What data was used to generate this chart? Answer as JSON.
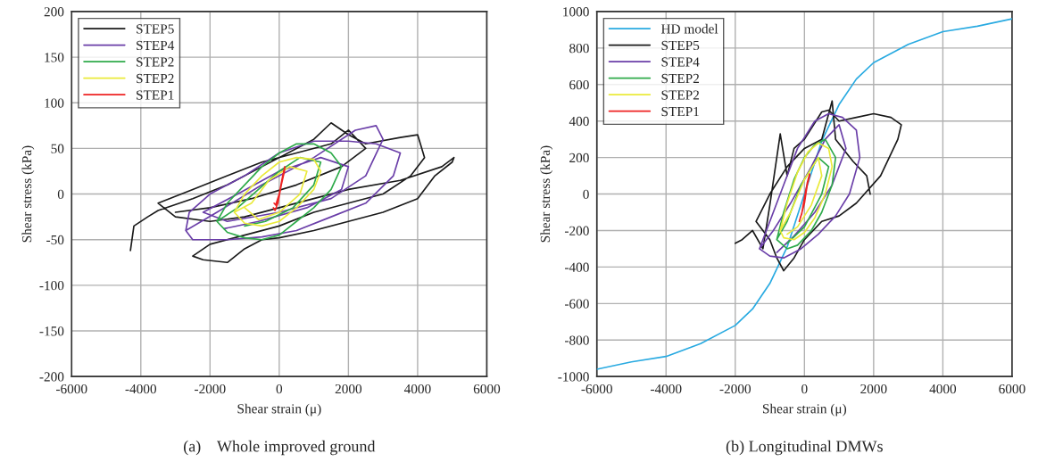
{
  "chart_data": [
    {
      "type": "line",
      "title": "(a)    Whole improved ground",
      "xlabel": "Shear strain (μ)",
      "ylabel": "Shear stress (kPa)",
      "xlim": [
        -6000,
        6000
      ],
      "ylim": [
        -200,
        200
      ],
      "xticks": [
        -6000,
        -4000,
        -2000,
        0,
        2000,
        4000,
        6000
      ],
      "yticks": [
        -200,
        -150,
        -100,
        -50,
        0,
        50,
        100,
        150,
        200
      ],
      "grid": true,
      "legend": "top left",
      "series": [
        {
          "name": "STEP5",
          "color": "#1a1a1a",
          "x": [
            -4300,
            -4200,
            -3800,
            -3500,
            -2500,
            -1500,
            -500,
            500,
            1000,
            1500,
            2000,
            2500,
            3500,
            4000,
            4200,
            3800,
            3000,
            2000,
            1000,
            0,
            -1000,
            -2000,
            -2500,
            -2200,
            -1500,
            -1000,
            -500,
            0,
            1000,
            2000,
            3000,
            4000,
            4500,
            5000,
            5050,
            4700,
            3500,
            2000,
            1000,
            0,
            -1000,
            -2000,
            -3000,
            -3500,
            -2500,
            -1500,
            -500,
            500,
            1500,
            2000,
            2500,
            1800,
            500,
            -800,
            -2000,
            -3000
          ],
          "values": [
            -62,
            -35,
            -25,
            -18,
            -5,
            10,
            30,
            50,
            60,
            78,
            65,
            55,
            62,
            65,
            40,
            20,
            0,
            -10,
            -20,
            -35,
            -45,
            -55,
            -68,
            -72,
            -75,
            -60,
            -50,
            -48,
            -40,
            -30,
            -20,
            -5,
            20,
            35,
            40,
            30,
            15,
            5,
            -5,
            -15,
            -25,
            -30,
            -25,
            -10,
            5,
            20,
            35,
            45,
            55,
            70,
            50,
            30,
            10,
            -5,
            -15,
            -20
          ]
        },
        {
          "name": "STEP4",
          "color": "#6a3ea8",
          "x": [
            -2700,
            -2600,
            -2000,
            -1000,
            0,
            1000,
            2000,
            2800,
            3500,
            3300,
            2500,
            1500,
            500,
            -500,
            -1500,
            -2500,
            -2700,
            -1800,
            -500,
            1000,
            2200,
            2800,
            3000,
            2500,
            1500,
            0,
            -1500,
            -2200,
            -1200,
            0,
            1200,
            2000,
            1800,
            800,
            -600,
            -1600
          ],
          "values": [
            -40,
            -20,
            0,
            20,
            45,
            58,
            58,
            55,
            45,
            20,
            -10,
            -25,
            -40,
            -47,
            -50,
            -50,
            -40,
            -20,
            10,
            40,
            70,
            75,
            60,
            20,
            -5,
            -20,
            -30,
            -20,
            0,
            25,
            40,
            30,
            5,
            -15,
            -30,
            -38
          ]
        },
        {
          "name": "STEP2",
          "color": "#2eaa4a",
          "x": [
            -1800,
            -1500,
            -1000,
            -500,
            0,
            500,
            1000,
            1500,
            1800,
            1500,
            1000,
            500,
            0,
            -500,
            -1000,
            -1500,
            -1800,
            -1200,
            -600,
            0,
            600,
            1200,
            1000,
            400,
            -400,
            -1000
          ],
          "values": [
            -30,
            -10,
            10,
            30,
            45,
            55,
            55,
            45,
            30,
            5,
            -15,
            -30,
            -45,
            -50,
            -48,
            -42,
            -30,
            -15,
            5,
            25,
            40,
            35,
            10,
            -15,
            -30,
            -35
          ]
        },
        {
          "name": "STEP2",
          "color": "#eaea3a",
          "x": [
            -1300,
            -1000,
            -500,
            0,
            500,
            1000,
            1200,
            1000,
            500,
            0,
            -500,
            -1000,
            -1300,
            -800,
            -300,
            300,
            800,
            600,
            0,
            -600,
            -1000
          ],
          "values": [
            -20,
            0,
            20,
            35,
            40,
            38,
            25,
            5,
            -15,
            -30,
            -35,
            -32,
            -20,
            -10,
            15,
            30,
            25,
            0,
            -20,
            -28,
            -15
          ]
        },
        {
          "name": "STEP1",
          "color": "#ee2222",
          "x": [
            -170,
            -120,
            -40,
            60,
            150,
            160,
            100,
            0,
            -100,
            -150
          ],
          "values": [
            -15,
            -18,
            -10,
            10,
            25,
            30,
            20,
            0,
            -12,
            -10
          ]
        }
      ]
    },
    {
      "type": "line",
      "title": "(b) Longitudinal DMWs",
      "xlabel": "Shear strain (μ)",
      "ylabel": "Shear stress (kPa)",
      "xlim": [
        -6000,
        6000
      ],
      "ylim": [
        -1000,
        1000
      ],
      "xticks": [
        -6000,
        -4000,
        -2000,
        0,
        2000,
        4000,
        6000
      ],
      "yticks": [
        -1000,
        -800,
        -600,
        -400,
        -200,
        0,
        200,
        400,
        600,
        800,
        1000
      ],
      "grid": true,
      "legend": "top left",
      "series": [
        {
          "name": "HD model",
          "color": "#29aae1",
          "x": [
            -6000,
            -5000,
            -4000,
            -3000,
            -2000,
            -1500,
            -1000,
            -500,
            0,
            500,
            1000,
            1500,
            2000,
            3000,
            4000,
            5000,
            6000
          ],
          "values": [
            -960,
            -920,
            -890,
            -820,
            -720,
            -630,
            -490,
            -290,
            0,
            290,
            490,
            630,
            720,
            820,
            890,
            920,
            960
          ]
        },
        {
          "name": "STEP5",
          "color": "#1a1a1a",
          "x": [
            -2000,
            -1800,
            -1500,
            -1200,
            -1000,
            -700,
            -500,
            -300,
            0,
            500,
            700,
            1000,
            1500,
            2000,
            2500,
            2800,
            2700,
            2200,
            1500,
            1000,
            500,
            0,
            -300,
            -600,
            -800,
            -1000,
            -1400,
            -1000,
            -500,
            0,
            500,
            800,
            900,
            1400,
            1800,
            1900
          ],
          "values": [
            -270,
            -250,
            -200,
            -300,
            -60,
            330,
            100,
            250,
            300,
            450,
            460,
            400,
            420,
            440,
            420,
            380,
            300,
            100,
            -50,
            -120,
            -150,
            -250,
            -350,
            -420,
            -350,
            -250,
            -150,
            0,
            150,
            250,
            300,
            510,
            300,
            180,
            100,
            0
          ]
        },
        {
          "name": "STEP4",
          "color": "#6a3ea8",
          "x": [
            -1300,
            -1000,
            -600,
            -200,
            300,
            700,
            1100,
            1500,
            1600,
            1300,
            900,
            400,
            -100,
            -600,
            -1000,
            -1300,
            -900,
            -400,
            200,
            600,
            1000,
            1200,
            800,
            300,
            -300,
            -800
          ],
          "values": [
            -300,
            -150,
            50,
            250,
            400,
            440,
            420,
            350,
            200,
            0,
            -120,
            -220,
            -300,
            -350,
            -340,
            -300,
            -200,
            -50,
            150,
            300,
            380,
            250,
            50,
            -100,
            -230,
            -320
          ]
        },
        {
          "name": "STEP2",
          "color": "#2eaa4a",
          "x": [
            -800,
            -600,
            -300,
            0,
            300,
            600,
            900,
            800,
            500,
            200,
            -200,
            -500,
            -800,
            -500,
            -100,
            400,
            700,
            500,
            0,
            -500
          ],
          "values": [
            -250,
            -100,
            80,
            200,
            270,
            300,
            200,
            50,
            -100,
            -200,
            -280,
            -300,
            -250,
            -150,
            50,
            200,
            150,
            0,
            -180,
            -270
          ]
        },
        {
          "name": "STEP2",
          "color": "#eaea3a",
          "x": [
            -700,
            -500,
            -200,
            100,
            400,
            700,
            800,
            600,
            300,
            0,
            -300,
            -600,
            -700,
            -400,
            0,
            400,
            500,
            200,
            -200,
            -500
          ],
          "values": [
            -200,
            -50,
            120,
            230,
            280,
            250,
            150,
            0,
            -130,
            -210,
            -250,
            -240,
            -200,
            -100,
            80,
            200,
            100,
            -60,
            -180,
            -220
          ]
        },
        {
          "name": "STEP1",
          "color": "#ee2222",
          "x": [
            -150,
            -100,
            0,
            80,
            150,
            150,
            80,
            0,
            -80,
            -120
          ],
          "values": [
            -150,
            -120,
            -50,
            50,
            100,
            110,
            60,
            -20,
            -110,
            -130
          ]
        }
      ]
    }
  ]
}
